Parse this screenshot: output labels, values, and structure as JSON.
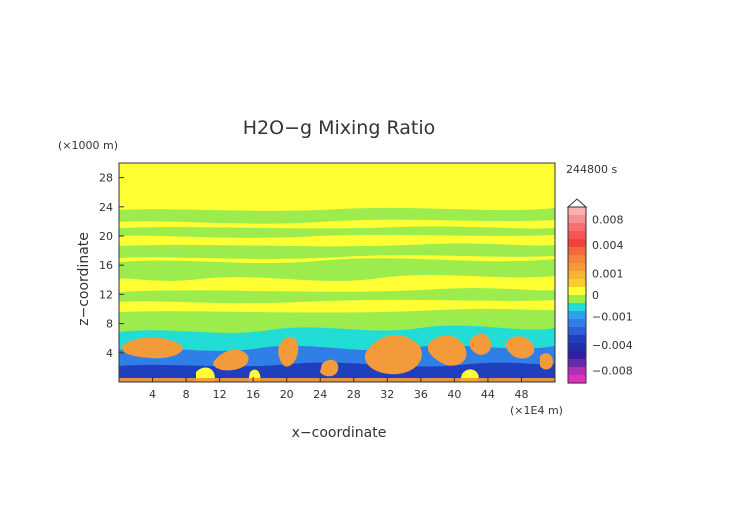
{
  "chart_data": {
    "type": "heatmap",
    "title": "H2O−g Mixing Ratio",
    "xlabel": "x−coordinate",
    "ylabel": "z−coordinate",
    "x_unit": "(×1E4 m)",
    "y_unit": "(×1000 m)",
    "time_label": "244800 s",
    "xlim": [
      0,
      52
    ],
    "ylim": [
      0,
      30
    ],
    "x_ticks": [
      "4",
      "8",
      "12",
      "16",
      "20",
      "24",
      "28",
      "32",
      "36",
      "40",
      "44",
      "48"
    ],
    "y_ticks": [
      "4",
      "8",
      "12",
      "16",
      "20",
      "24",
      "28"
    ],
    "colorbar_labels": [
      "0.008",
      "0.004",
      "0.001",
      "0",
      "−0.001",
      "−0.004",
      "−0.008"
    ],
    "colorbar_values": [
      0.008,
      0.004,
      0.001,
      0,
      -0.001,
      -0.004,
      -0.008
    ],
    "colorbar_range": [
      -0.01,
      0.01
    ],
    "colors": {
      "background": "#ffff33",
      "band": "#9cec4e",
      "positive": "#f39a3a",
      "negative": "#2f7fe6",
      "strong_negative": "#1f3fbf",
      "cyan": "#22ddd6"
    }
  }
}
